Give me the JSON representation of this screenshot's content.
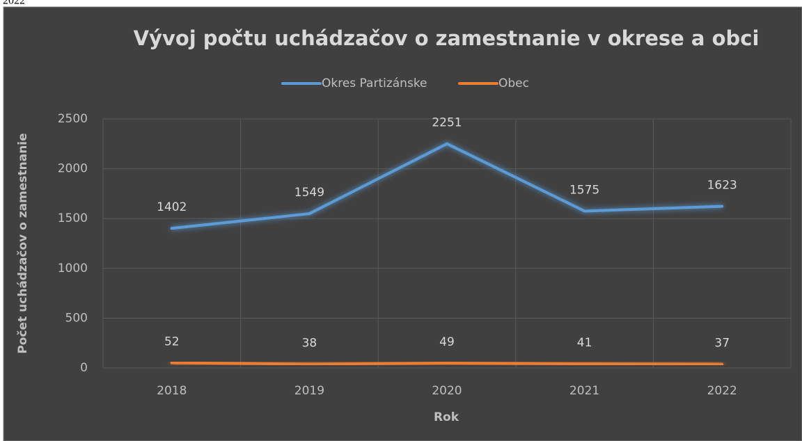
{
  "page_fragment": "2022",
  "chart_data": {
    "type": "line",
    "title": "Vývoj počtu uchádzačov o zamestnanie v okrese a obci",
    "x_label": "Rok",
    "y_label": "Počet uchádzačov o zamestnanie",
    "categories": [
      "2018",
      "2019",
      "2020",
      "2021",
      "2022"
    ],
    "series": [
      {
        "name": "Okres Partizánske",
        "color": "#5b9bd5",
        "values": [
          1402,
          1549,
          2251,
          1575,
          1623
        ]
      },
      {
        "name": "Obec",
        "color": "#ed7d31",
        "values": [
          52,
          38,
          49,
          41,
          37
        ]
      }
    ],
    "ylim": [
      0,
      2500
    ],
    "yticks": [
      0,
      500,
      1000,
      1500,
      2000,
      2500
    ],
    "grid": true,
    "legend": "top"
  }
}
